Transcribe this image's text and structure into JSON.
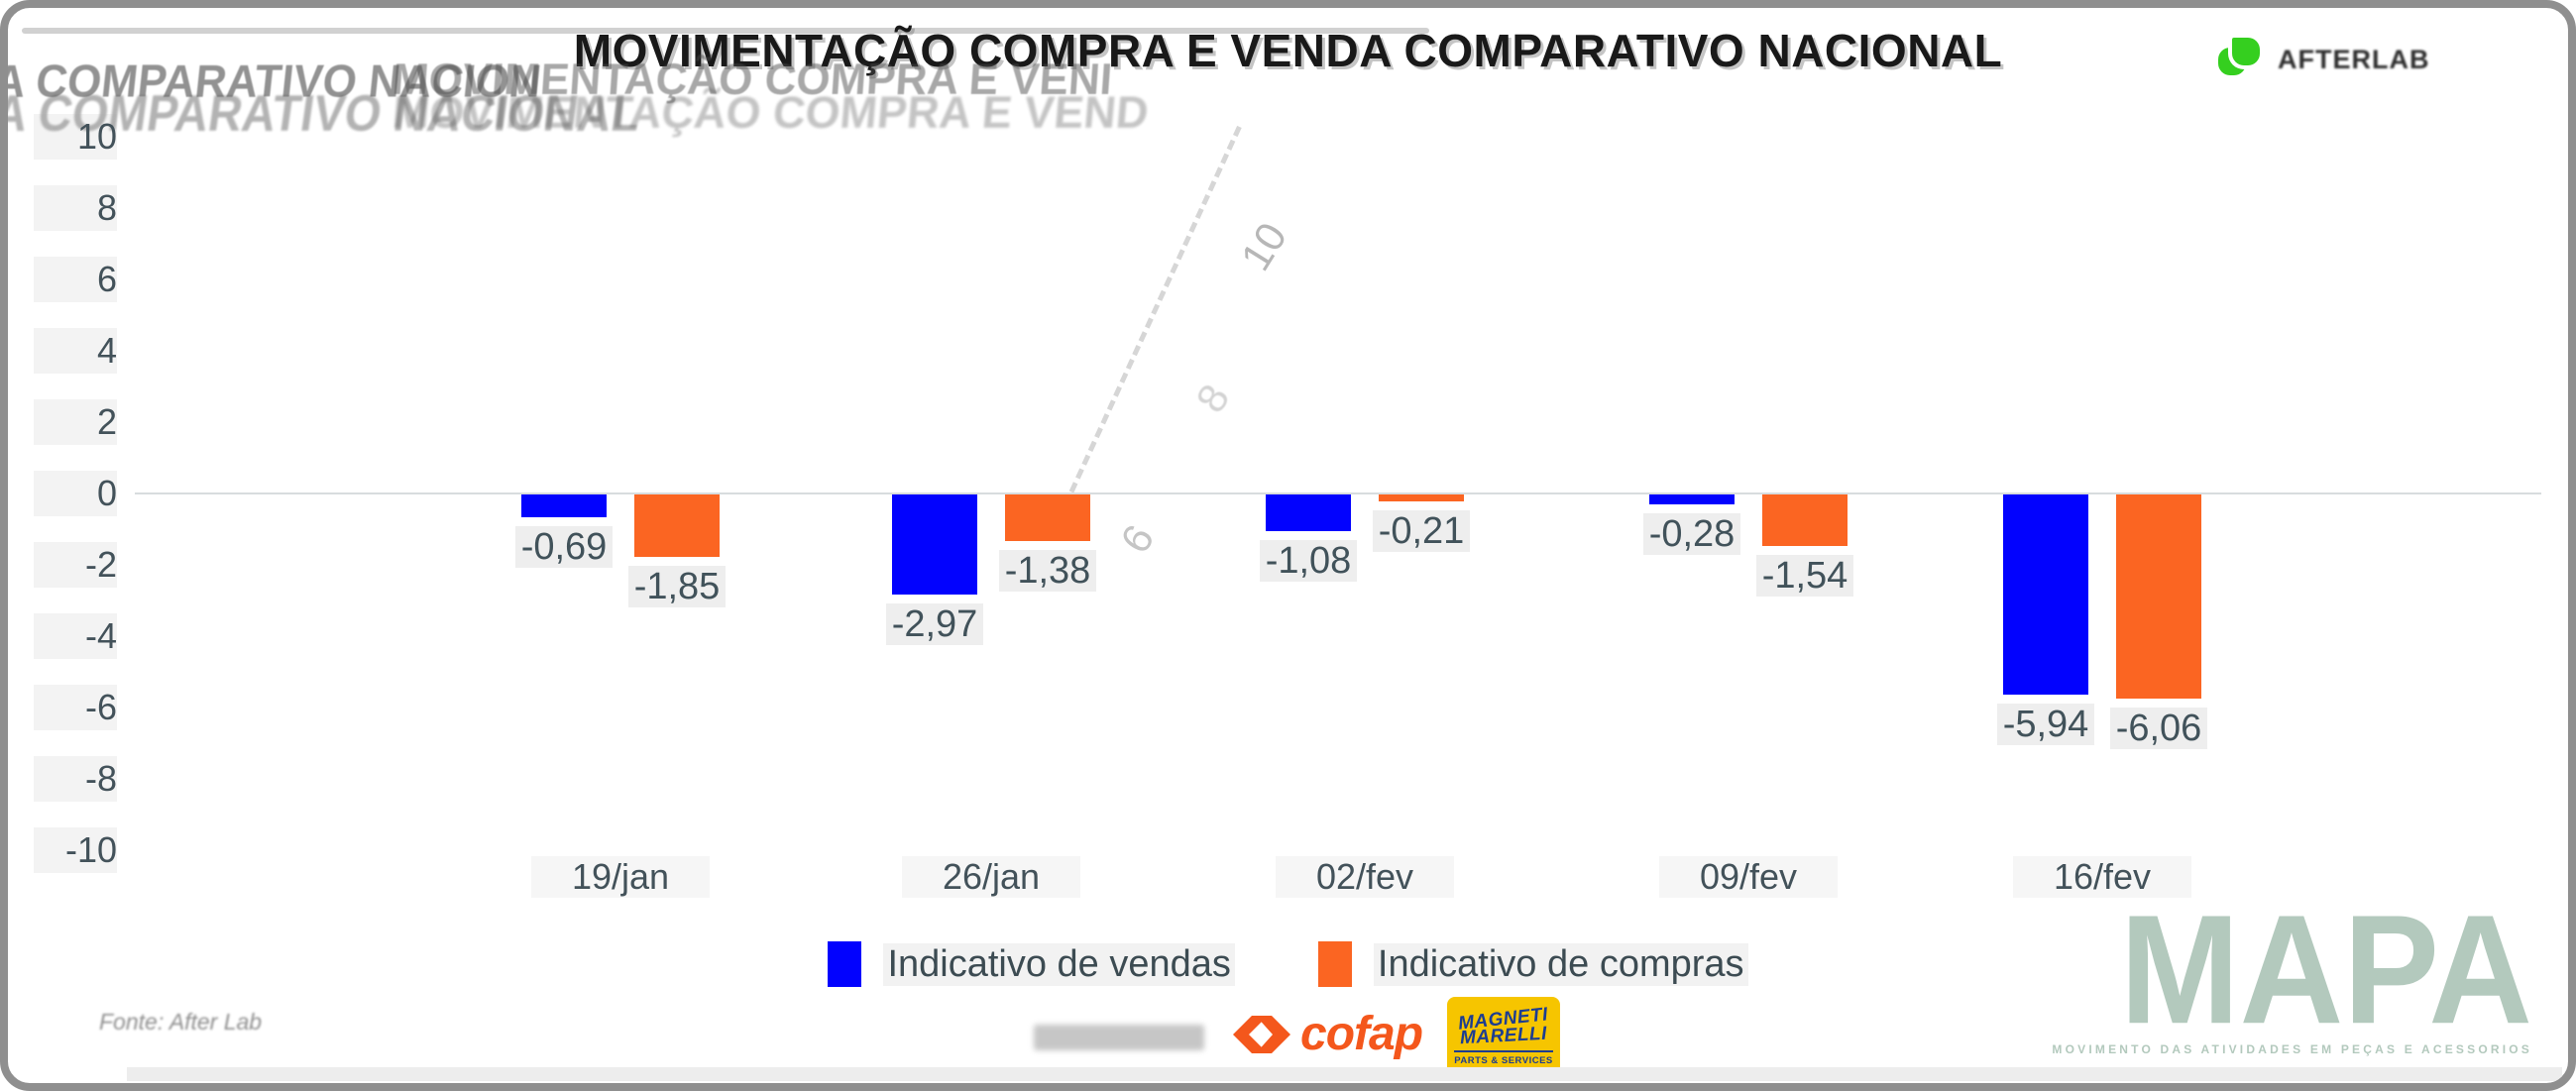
{
  "header": {
    "title": "MOVIMENTAÇÃO COMPRA E VENDA COMPARATIVO NACIONAL",
    "logo_text": "AFTERLAB"
  },
  "chart_data": {
    "type": "bar",
    "title": "MOVIMENTAÇÃO COMPRA E VENDA COMPARATIVO NACIONAL",
    "categories": [
      "19/jan",
      "26/jan",
      "02/fev",
      "09/fev",
      "16/fev"
    ],
    "series": [
      {
        "name": "Indicativo de vendas",
        "color": "#0202FE",
        "values": [
          -0.69,
          -2.97,
          -1.08,
          -0.28,
          -5.94
        ],
        "labels": [
          "-0,69",
          "-2,97",
          "-1,08",
          "-0,28",
          "-5,94"
        ]
      },
      {
        "name": "Indicativo de compras",
        "color": "#FB6522",
        "values": [
          -1.85,
          -1.38,
          -0.21,
          -1.54,
          -6.06
        ],
        "labels": [
          "-1,85",
          "-1,38",
          "-0,21",
          "-1,54",
          "-6,06"
        ]
      }
    ],
    "ylim": [
      -10,
      10
    ],
    "yticks": [
      10,
      8,
      6,
      4,
      2,
      0,
      -2,
      -4,
      -6,
      -8,
      -10
    ],
    "xlabel": "",
    "ylabel": "",
    "grid": "zero-line-only",
    "legend_position": "bottom-center"
  },
  "footer": {
    "source": "Fonte: After Lab",
    "cofap_label": "cofap",
    "magneti": {
      "line1": "MAGNETI",
      "line2": "MARELLI",
      "line3": "PARTS & SERVICES"
    },
    "mapa": {
      "title": "MAPA",
      "subtitle": "MOVIMENTO DAS ATIVIDADES EM PEÇAS E ACESSORIOS"
    }
  },
  "ghost_artifacts": {
    "row1_left": "A COMPARATIVO NACION",
    "row1_right": "MOVIMENTAÇÃO COMPRA E VENI",
    "row2_left": "A COMPARATIVO NACIONAL",
    "row2_right": "MOVIMENTAÇÃO COMPRA E VEND",
    "numbers": [
      "10",
      "8",
      "6"
    ]
  },
  "colors": {
    "vendas": "#0202FE",
    "compras": "#FB6522",
    "frame": "#8f8f8f",
    "axis_text": "#43525a",
    "mapa": "#b3c9bd",
    "afterlab_green": "#35cf1f",
    "cofap_orange": "#f4571c",
    "marelli_yellow": "#f6c500",
    "marelli_blue": "#1d3d91"
  }
}
